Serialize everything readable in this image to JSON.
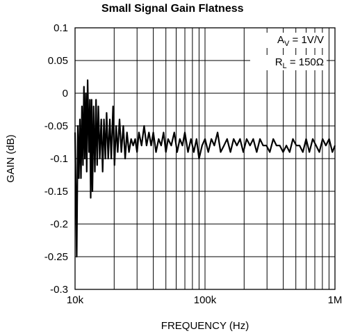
{
  "chart_data": {
    "type": "line",
    "title": "Small Signal Gain Flatness",
    "xlabel": "FREQUENCY (Hz)",
    "ylabel": "GAIN (dB)",
    "x_scale": "log",
    "xlim": [
      10000,
      1000000
    ],
    "ylim": [
      -0.3,
      0.1
    ],
    "grid": true,
    "x_ticks": [
      10000,
      100000,
      1000000
    ],
    "x_tick_labels": [
      "10k",
      "100k",
      "1M"
    ],
    "y_ticks": [
      0.1,
      0.05,
      0,
      -0.05,
      -0.1,
      -0.15,
      -0.2,
      -0.25,
      -0.3
    ],
    "y_tick_labels": [
      "0.1",
      "0.05",
      "0",
      "-0.05",
      "-0.1",
      "-0.15",
      "-0.2",
      "-0.25",
      "-0.3"
    ],
    "annotations": [
      {
        "main": "A",
        "sub": "V",
        "rest": " = 1V/V"
      },
      {
        "main": "R",
        "sub": "L",
        "rest": " = 150Ω"
      }
    ],
    "series": [
      {
        "line_color": "#000000",
        "points": [
          [
            10000,
            -0.06
          ],
          [
            10300,
            -0.25
          ],
          [
            10500,
            -0.05
          ],
          [
            10700,
            -0.13
          ],
          [
            10900,
            -0.04
          ],
          [
            11100,
            -0.13
          ],
          [
            11300,
            -0.02
          ],
          [
            11500,
            -0.11
          ],
          [
            11700,
            0.01
          ],
          [
            11900,
            -0.1
          ],
          [
            12100,
            0.0
          ],
          [
            12300,
            -0.12
          ],
          [
            12500,
            0.02
          ],
          [
            12800,
            -0.09
          ],
          [
            13000,
            -0.01
          ],
          [
            13200,
            -0.16
          ],
          [
            13400,
            -0.01
          ],
          [
            13600,
            -0.15
          ],
          [
            13900,
            -0.02
          ],
          [
            14200,
            -0.12
          ],
          [
            14500,
            -0.01
          ],
          [
            14800,
            -0.11
          ],
          [
            15100,
            -0.02
          ],
          [
            15500,
            -0.1
          ],
          [
            15900,
            -0.04
          ],
          [
            16300,
            -0.12
          ],
          [
            16700,
            -0.04
          ],
          [
            17100,
            -0.1
          ],
          [
            17500,
            -0.03
          ],
          [
            18000,
            -0.1
          ],
          [
            18500,
            -0.04
          ],
          [
            19000,
            -0.1
          ],
          [
            19600,
            -0.02
          ],
          [
            20100,
            -0.11
          ],
          [
            20700,
            -0.05
          ],
          [
            21300,
            -0.09
          ],
          [
            22000,
            -0.04
          ],
          [
            22700,
            -0.09
          ],
          [
            23500,
            -0.05
          ],
          [
            24300,
            -0.1
          ],
          [
            25100,
            -0.06
          ],
          [
            26000,
            -0.09
          ],
          [
            27000,
            -0.07
          ],
          [
            28000,
            -0.08
          ],
          [
            29000,
            -0.07
          ],
          [
            30000,
            -0.09
          ],
          [
            31000,
            -0.06
          ],
          [
            32500,
            -0.08
          ],
          [
            34000,
            -0.05
          ],
          [
            35500,
            -0.08
          ],
          [
            37000,
            -0.06
          ],
          [
            38500,
            -0.08
          ],
          [
            40000,
            -0.06
          ],
          [
            42000,
            -0.09
          ],
          [
            44000,
            -0.07
          ],
          [
            46000,
            -0.08
          ],
          [
            48000,
            -0.06
          ],
          [
            50000,
            -0.09
          ],
          [
            52000,
            -0.07
          ],
          [
            55000,
            -0.08
          ],
          [
            58000,
            -0.06
          ],
          [
            61000,
            -0.09
          ],
          [
            64000,
            -0.07
          ],
          [
            67000,
            -0.08
          ],
          [
            70000,
            -0.06
          ],
          [
            74000,
            -0.09
          ],
          [
            78000,
            -0.07
          ],
          [
            82000,
            -0.09
          ],
          [
            86000,
            -0.07
          ],
          [
            90000,
            -0.1
          ],
          [
            95000,
            -0.08
          ],
          [
            100000,
            -0.07
          ],
          [
            106000,
            -0.09
          ],
          [
            112000,
            -0.07
          ],
          [
            118000,
            -0.08
          ],
          [
            125000,
            -0.06
          ],
          [
            132000,
            -0.09
          ],
          [
            140000,
            -0.08
          ],
          [
            148000,
            -0.07
          ],
          [
            157000,
            -0.09
          ],
          [
            166000,
            -0.07
          ],
          [
            176000,
            -0.08
          ],
          [
            186000,
            -0.07
          ],
          [
            197000,
            -0.09
          ],
          [
            209000,
            -0.07
          ],
          [
            222000,
            -0.08
          ],
          [
            235000,
            -0.07
          ],
          [
            250000,
            -0.09
          ],
          [
            265000,
            -0.07
          ],
          [
            280000,
            -0.08
          ],
          [
            297000,
            -0.08
          ],
          [
            315000,
            -0.09
          ],
          [
            335000,
            -0.07
          ],
          [
            355000,
            -0.08
          ],
          [
            376000,
            -0.08
          ],
          [
            399000,
            -0.09
          ],
          [
            423000,
            -0.08
          ],
          [
            448000,
            -0.09
          ],
          [
            475000,
            -0.07
          ],
          [
            504000,
            -0.08
          ],
          [
            534000,
            -0.08
          ],
          [
            566000,
            -0.09
          ],
          [
            600000,
            -0.07
          ],
          [
            636000,
            -0.09
          ],
          [
            674000,
            -0.07
          ],
          [
            715000,
            -0.08
          ],
          [
            758000,
            -0.09
          ],
          [
            803000,
            -0.07
          ],
          [
            851000,
            -0.08
          ],
          [
            902000,
            -0.07
          ],
          [
            956000,
            -0.09
          ],
          [
            1000000,
            -0.08
          ]
        ]
      }
    ]
  }
}
